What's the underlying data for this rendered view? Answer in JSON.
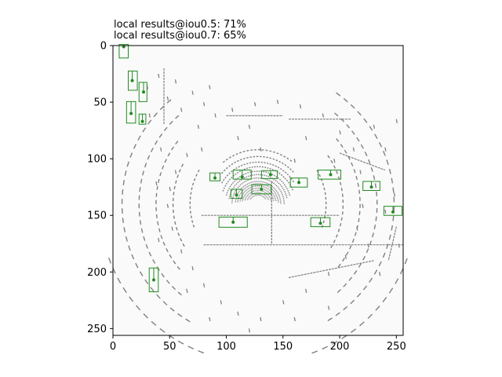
{
  "chart_data": {
    "type": "scatter",
    "title_lines": [
      "local results@iou0.5: 71%",
      "local results@iou0.7: 65%"
    ],
    "xlabel": "",
    "ylabel": "",
    "xlim": [
      0,
      256
    ],
    "ylim": [
      256,
      0
    ],
    "y_inverted": true,
    "x_ticks": [
      0,
      50,
      100,
      150,
      200,
      250
    ],
    "y_ticks": [
      0,
      50,
      100,
      150,
      200,
      250
    ],
    "grid": false,
    "background_color": "#fafafa",
    "point_color": "#808080",
    "box_color": "#228b22",
    "boxes": [
      {
        "cx": 9.5,
        "cy": 5,
        "w": 8,
        "h": 12,
        "dot": [
          9.5,
          1
        ]
      },
      {
        "cx": 17.5,
        "cy": 31,
        "w": 8,
        "h": 17,
        "dot": [
          17,
          31
        ]
      },
      {
        "cx": 26.5,
        "cy": 41,
        "w": 7,
        "h": 17,
        "dot": [
          27,
          41
        ]
      },
      {
        "cx": 16,
        "cy": 59,
        "w": 8,
        "h": 19,
        "dot": [
          16,
          60
        ]
      },
      {
        "cx": 26,
        "cy": 65,
        "w": 6,
        "h": 9,
        "dot": [
          26,
          67
        ]
      },
      {
        "cx": 36,
        "cy": 207,
        "w": 8,
        "h": 21,
        "dot": [
          36,
          207
        ]
      },
      {
        "cx": 90,
        "cy": 116,
        "w": 9,
        "h": 7,
        "dot": [
          90,
          117
        ]
      },
      {
        "cx": 114,
        "cy": 114,
        "w": 16,
        "h": 8,
        "dot": [
          114,
          116
        ]
      },
      {
        "cx": 138,
        "cy": 114,
        "w": 14,
        "h": 7,
        "dot": [
          139,
          114
        ]
      },
      {
        "cx": 109,
        "cy": 131,
        "w": 10,
        "h": 8,
        "dot": [
          109,
          132
        ]
      },
      {
        "cx": 131,
        "cy": 127,
        "w": 17,
        "h": 8,
        "dot": [
          131,
          127
        ]
      },
      {
        "cx": 164,
        "cy": 121,
        "w": 15,
        "h": 8,
        "dot": [
          164,
          121
        ]
      },
      {
        "cx": 191,
        "cy": 114,
        "w": 20,
        "h": 8,
        "dot": [
          192,
          114
        ]
      },
      {
        "cx": 228,
        "cy": 124,
        "w": 15,
        "h": 8,
        "dot": [
          228,
          125
        ]
      },
      {
        "cx": 106,
        "cy": 156,
        "w": 25,
        "h": 9,
        "dot": [
          106,
          156
        ]
      },
      {
        "cx": 183,
        "cy": 156,
        "w": 17,
        "h": 8,
        "dot": [
          183,
          157
        ]
      },
      {
        "cx": 247,
        "cy": 146,
        "w": 16,
        "h": 8,
        "dot": [
          247,
          147
        ]
      }
    ],
    "arcs": [
      {
        "r": 8,
        "a0": -150,
        "a1": -30
      },
      {
        "r": 10,
        "a0": -160,
        "a1": -20
      },
      {
        "r": 12,
        "a0": -165,
        "a1": -15
      },
      {
        "r": 14,
        "a0": -170,
        "a1": -10
      },
      {
        "r": 16,
        "a0": -172,
        "a1": -8
      },
      {
        "r": 18,
        "a0": -175,
        "a1": -5
      },
      {
        "r": 20,
        "a0": -175,
        "a1": 0
      },
      {
        "r": 23,
        "a0": -178,
        "a1": 2
      },
      {
        "r": 26,
        "a0": -170,
        "a1": -10
      },
      {
        "r": 29,
        "a0": -165,
        "a1": -15
      },
      {
        "r": 33,
        "a0": -160,
        "a1": -20
      },
      {
        "r": 37,
        "a0": -150,
        "a1": -30
      },
      {
        "r": 42,
        "a0": -140,
        "a1": -40
      },
      {
        "r": 48,
        "a0": -130,
        "a1": -50
      },
      {
        "r": 60,
        "a0": -200,
        "a1": -150
      },
      {
        "r": 60,
        "a0": -30,
        "a1": 20
      },
      {
        "r": 75,
        "a0": -210,
        "a1": -150
      },
      {
        "r": 75,
        "a0": -35,
        "a1": 30
      },
      {
        "r": 90,
        "a0": -220,
        "a1": -140
      },
      {
        "r": 90,
        "a0": -40,
        "a1": 40
      },
      {
        "r": 105,
        "a0": -230,
        "a1": -130
      },
      {
        "r": 105,
        "a0": -50,
        "a1": 50
      },
      {
        "r": 120,
        "a0": -240,
        "a1": -130
      },
      {
        "r": 120,
        "a0": -55,
        "a1": 60
      },
      {
        "r": 140,
        "a0": -250,
        "a1": -200
      },
      {
        "r": 140,
        "a0": 20,
        "a1": 70
      }
    ],
    "lines": [
      {
        "x1": 80,
        "y1": 176,
        "x2": 256,
        "y2": 176
      },
      {
        "x1": 78,
        "y1": 150,
        "x2": 200,
        "y2": 150
      },
      {
        "x1": 140,
        "y1": 120,
        "x2": 140,
        "y2": 176
      },
      {
        "x1": 200,
        "y1": 95,
        "x2": 240,
        "y2": 110
      },
      {
        "x1": 45,
        "y1": 20,
        "x2": 45,
        "y2": 70
      },
      {
        "x1": 155,
        "y1": 65,
        "x2": 210,
        "y2": 65
      },
      {
        "x1": 100,
        "y1": 62,
        "x2": 150,
        "y2": 62
      },
      {
        "x1": 250,
        "y1": 160,
        "x2": 243,
        "y2": 190
      },
      {
        "x1": 155,
        "y1": 205,
        "x2": 230,
        "y2": 190
      }
    ],
    "dashes": [
      {
        "x": 30,
        "y": 35
      },
      {
        "x": 32,
        "y": 60
      },
      {
        "x": 40,
        "y": 25
      },
      {
        "x": 48,
        "y": 45
      },
      {
        "x": 55,
        "y": 30
      },
      {
        "x": 60,
        "y": 55
      },
      {
        "x": 70,
        "y": 40
      },
      {
        "x": 75,
        "y": 70
      },
      {
        "x": 80,
        "y": 50
      },
      {
        "x": 85,
        "y": 35
      },
      {
        "x": 90,
        "y": 60
      },
      {
        "x": 78,
        "y": 90
      },
      {
        "x": 65,
        "y": 95
      },
      {
        "x": 55,
        "y": 110
      },
      {
        "x": 50,
        "y": 125
      },
      {
        "x": 48,
        "y": 140
      },
      {
        "x": 52,
        "y": 160
      },
      {
        "x": 60,
        "y": 180
      },
      {
        "x": 70,
        "y": 195
      },
      {
        "x": 80,
        "y": 210
      },
      {
        "x": 95,
        "y": 225
      },
      {
        "x": 110,
        "y": 235
      },
      {
        "x": 130,
        "y": 240
      },
      {
        "x": 150,
        "y": 225
      },
      {
        "x": 170,
        "y": 215
      },
      {
        "x": 190,
        "y": 200
      },
      {
        "x": 205,
        "y": 185
      },
      {
        "x": 215,
        "y": 160
      },
      {
        "x": 220,
        "y": 140
      },
      {
        "x": 218,
        "y": 110
      },
      {
        "x": 212,
        "y": 90
      },
      {
        "x": 200,
        "y": 75
      },
      {
        "x": 185,
        "y": 60
      },
      {
        "x": 165,
        "y": 52
      },
      {
        "x": 145,
        "y": 48
      },
      {
        "x": 125,
        "y": 50
      },
      {
        "x": 105,
        "y": 55
      },
      {
        "x": 240,
        "y": 90
      },
      {
        "x": 248,
        "y": 130
      },
      {
        "x": 252,
        "y": 175
      },
      {
        "x": 235,
        "y": 200
      },
      {
        "x": 190,
        "y": 230
      },
      {
        "x": 160,
        "y": 240
      },
      {
        "x": 120,
        "y": 250
      },
      {
        "x": 85,
        "y": 240
      },
      {
        "x": 65,
        "y": 215
      },
      {
        "x": 40,
        "y": 170
      },
      {
        "x": 38,
        "y": 120
      },
      {
        "x": 42,
        "y": 90
      },
      {
        "x": 225,
        "y": 175
      },
      {
        "x": 230,
        "y": 70
      },
      {
        "x": 250,
        "y": 65
      },
      {
        "x": 240,
        "y": 145
      },
      {
        "x": 195,
        "y": 100
      },
      {
        "x": 160,
        "y": 100
      },
      {
        "x": 130,
        "y": 90
      },
      {
        "x": 110,
        "y": 80
      },
      {
        "x": 120,
        "y": 70
      },
      {
        "x": 170,
        "y": 80
      }
    ]
  }
}
